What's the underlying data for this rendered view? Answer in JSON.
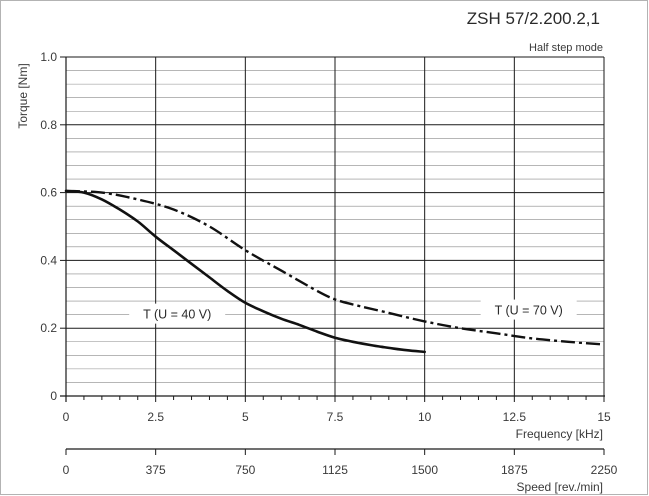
{
  "chart_data": {
    "type": "line",
    "title": "ZSH 57/2.200.2,1",
    "subtitle": "Half step mode",
    "ylabel": "Torque [Nm]",
    "xlabel": "Frequency [kHz]",
    "x2label": "Speed [rev./min]",
    "xlim": [
      0,
      15
    ],
    "ylim": [
      0,
      1.0
    ],
    "x_ticks": [
      "0",
      "2.5",
      "5",
      "7.5",
      "10",
      "12.5",
      "15"
    ],
    "x_tick_values": [
      0,
      2.5,
      5,
      7.5,
      10,
      12.5,
      15
    ],
    "y_ticks": [
      "0",
      "0.2",
      "0.4",
      "0.6",
      "0.8",
      "1.0"
    ],
    "y_tick_values": [
      0,
      0.2,
      0.4,
      0.6,
      0.8,
      1.0
    ],
    "x2_ticks": [
      "0",
      "375",
      "750",
      "1125",
      "1500",
      "1875",
      "2250"
    ],
    "x2_tick_values": [
      0,
      375,
      750,
      1125,
      1500,
      1875,
      2250
    ],
    "grid": true,
    "series": [
      {
        "name": "T (U = 40 V)",
        "style": "solid",
        "x": [
          0,
          0.5,
          1,
          1.5,
          2,
          2.5,
          3,
          3.5,
          4,
          4.5,
          5,
          5.5,
          6,
          6.5,
          7,
          7.5,
          8,
          8.5,
          9,
          9.5,
          10
        ],
        "y": [
          0.605,
          0.6,
          0.58,
          0.55,
          0.515,
          0.47,
          0.43,
          0.39,
          0.35,
          0.31,
          0.275,
          0.25,
          0.228,
          0.21,
          0.19,
          0.172,
          0.16,
          0.15,
          0.142,
          0.135,
          0.13
        ]
      },
      {
        "name": "T (U = 70 V)",
        "style": "dashed",
        "x": [
          0,
          1,
          2,
          3,
          4,
          5,
          6,
          7,
          7.5,
          8,
          9,
          10,
          11,
          12,
          13,
          14,
          15
        ],
        "y": [
          0.605,
          0.6,
          0.58,
          0.55,
          0.5,
          0.43,
          0.37,
          0.31,
          0.285,
          0.27,
          0.245,
          0.22,
          0.2,
          0.185,
          0.17,
          0.16,
          0.152
        ]
      }
    ],
    "series_label_anchors": [
      {
        "x": 3.1,
        "y": 0.24
      },
      {
        "x": 12.9,
        "y": 0.252
      }
    ]
  }
}
